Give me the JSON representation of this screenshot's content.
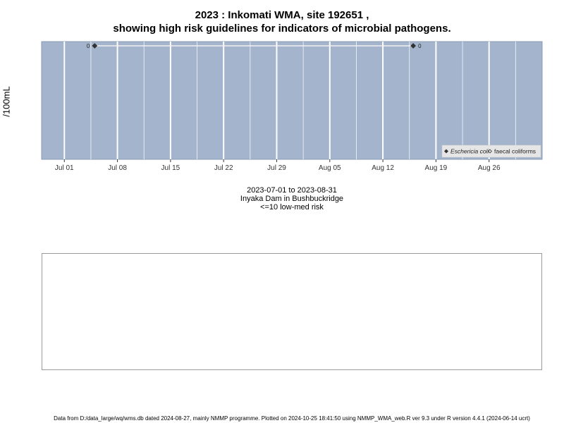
{
  "title_line1": "2023 : Inkomati WMA, site 192651 ,",
  "title_line2": "showing high risk guidelines for indicators of microbial pathogens.",
  "caption": {
    "date_range": "2023-07-01 to 2023-08-31",
    "location": "Inyaka Dam in Bushbuckridge",
    "risk_note": "<=10 low-med risk"
  },
  "footer": "Data from D:/data_large/wq/wms.db dated 2024-08-27, mainly NMMP programme. Plotted on 2024-10-25 18:41:50 using NMMP_WMA_web.R ver 9.3 under R version 4.4.1 (2024-06-14 ucrt)",
  "colors": {
    "panel_bg": "#a3b4cc",
    "gridline": "#ffffff",
    "series": "#333333",
    "legend_bg": "#e6e6e6"
  },
  "chart_data": {
    "type": "line",
    "title": "2023 : Inkomati WMA, site 192651 , showing high risk guidelines for indicators of microbial pathogens.",
    "xlabel": "",
    "ylabel": "/100mL",
    "xlim": [
      "2023-06-28",
      "2023-09-02"
    ],
    "x_ticks": [
      {
        "date": "2023-07-01",
        "label": "Jul 01"
      },
      {
        "date": "2023-07-08",
        "label": "Jul 08"
      },
      {
        "date": "2023-07-15",
        "label": "Jul 15"
      },
      {
        "date": "2023-07-22",
        "label": "Jul 22"
      },
      {
        "date": "2023-07-29",
        "label": "Jul 29"
      },
      {
        "date": "2023-08-05",
        "label": "Aug 05"
      },
      {
        "date": "2023-08-12",
        "label": "Aug 12"
      },
      {
        "date": "2023-08-19",
        "label": "Aug 19"
      },
      {
        "date": "2023-08-26",
        "label": "Aug 26"
      }
    ],
    "grid": true,
    "legend_position": "bottom-right",
    "series": [
      {
        "name": "Eschericia coli",
        "marker": "filled-diamond",
        "points": [
          {
            "x": "2023-07-05",
            "y": 0,
            "label": "0"
          },
          {
            "x": "2023-08-16",
            "y": 0,
            "label": "0"
          }
        ]
      },
      {
        "name": "faecal coliforms",
        "marker": "open-diamond",
        "points": []
      }
    ]
  }
}
